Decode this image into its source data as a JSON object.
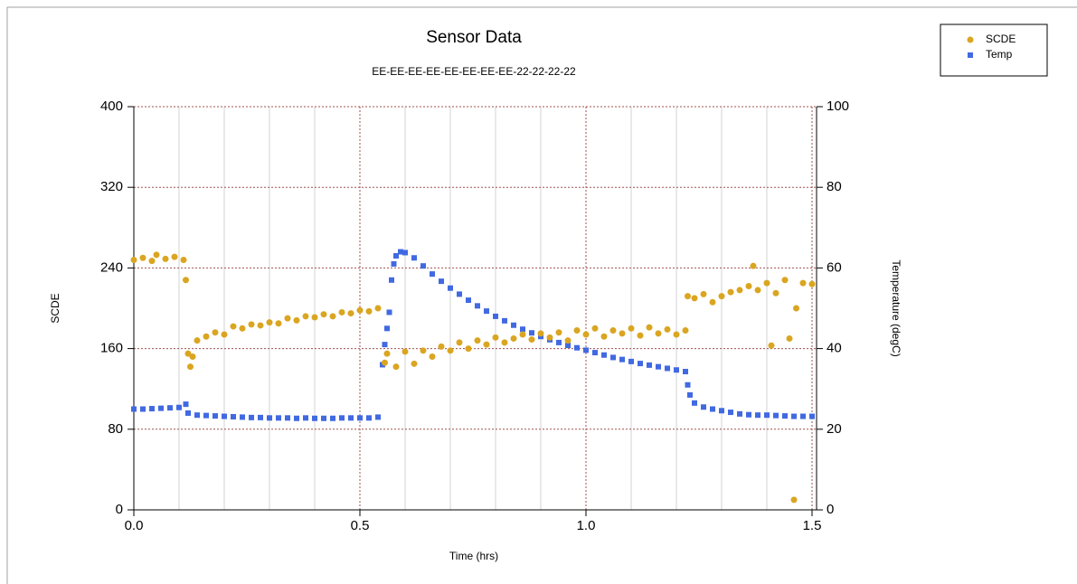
{
  "chart_data": {
    "type": "scatter",
    "title": "Sensor Data",
    "subtitle": "EE-EE-EE-EE-EE-EE-EE-EE-22-22-22-22",
    "x_label": "Time (hrs)",
    "y_label": "SCDE",
    "y2_label": "Temperature (degC)",
    "xlim": [
      0,
      1.51
    ],
    "xticks": [
      {
        "value": 0,
        "label": "0.0"
      },
      0.5,
      {
        "value": 1,
        "label": "1.0"
      },
      1.5
    ],
    "xminorticks": [
      0.1,
      0.2,
      0.3,
      0.4,
      0.6,
      0.7,
      0.8,
      0.9,
      1.1,
      1.2,
      1.3,
      1.4
    ],
    "ylim": [
      0,
      400
    ],
    "yticks": [
      0,
      80,
      160,
      240,
      320,
      400
    ],
    "y2lim": [
      0,
      100
    ],
    "y2ticks": [
      0,
      20,
      40,
      60,
      80,
      100
    ],
    "grid": true,
    "legend": "top-right",
    "series": [
      {
        "name": "SCDE",
        "color": "#daa520",
        "marker": "circle",
        "axis": "y",
        "x": [
          0,
          0.02,
          0.04,
          0.05,
          0.07,
          0.09,
          0.11,
          0.115,
          0.12,
          0.125,
          0.13,
          0.14,
          0.16,
          0.18,
          0.2,
          0.22,
          0.24,
          0.26,
          0.28,
          0.3,
          0.32,
          0.34,
          0.36,
          0.38,
          0.4,
          0.42,
          0.44,
          0.46,
          0.48,
          0.5,
          0.52,
          0.54,
          0.555,
          0.56,
          0.58,
          0.6,
          0.62,
          0.64,
          0.66,
          0.68,
          0.7,
          0.72,
          0.74,
          0.76,
          0.78,
          0.8,
          0.82,
          0.84,
          0.86,
          0.88,
          0.9,
          0.92,
          0.94,
          0.96,
          0.98,
          1.0,
          1.02,
          1.04,
          1.06,
          1.08,
          1.1,
          1.12,
          1.14,
          1.16,
          1.18,
          1.2,
          1.22,
          1.225,
          1.24,
          1.26,
          1.28,
          1.3,
          1.32,
          1.34,
          1.36,
          1.37,
          1.38,
          1.4,
          1.41,
          1.42,
          1.44,
          1.45,
          1.46,
          1.465,
          1.48,
          1.5
        ],
        "values": [
          248,
          250,
          247,
          253,
          249,
          251,
          248,
          228,
          155,
          142,
          152,
          168,
          172,
          176,
          174,
          182,
          180,
          184,
          183,
          186,
          185,
          190,
          188,
          192,
          191,
          194,
          192,
          196,
          195,
          198,
          197,
          200,
          146,
          155,
          142,
          157,
          145,
          158,
          152,
          162,
          158,
          166,
          160,
          168,
          164,
          171,
          166,
          170,
          174,
          169,
          175,
          171,
          176,
          168,
          178,
          174,
          180,
          172,
          178,
          175,
          180,
          173,
          181,
          175,
          179,
          174,
          178,
          212,
          210,
          214,
          206,
          212,
          216,
          218,
          222,
          242,
          218,
          225,
          163,
          215,
          228,
          170,
          10,
          200,
          225,
          224
        ]
      },
      {
        "name": "Temp",
        "color": "#4169e1",
        "marker": "square",
        "axis": "y2",
        "x": [
          0,
          0.02,
          0.04,
          0.06,
          0.08,
          0.1,
          0.115,
          0.12,
          0.14,
          0.16,
          0.18,
          0.2,
          0.22,
          0.24,
          0.26,
          0.28,
          0.3,
          0.32,
          0.34,
          0.36,
          0.38,
          0.4,
          0.42,
          0.44,
          0.46,
          0.48,
          0.5,
          0.52,
          0.54,
          0.55,
          0.555,
          0.56,
          0.565,
          0.57,
          0.575,
          0.58,
          0.59,
          0.6,
          0.62,
          0.64,
          0.66,
          0.68,
          0.7,
          0.72,
          0.74,
          0.76,
          0.78,
          0.8,
          0.82,
          0.84,
          0.86,
          0.88,
          0.9,
          0.92,
          0.94,
          0.96,
          0.98,
          1.0,
          1.02,
          1.04,
          1.06,
          1.08,
          1.1,
          1.12,
          1.14,
          1.16,
          1.18,
          1.2,
          1.22,
          1.225,
          1.23,
          1.24,
          1.26,
          1.28,
          1.3,
          1.32,
          1.34,
          1.36,
          1.38,
          1.4,
          1.42,
          1.44,
          1.46,
          1.48,
          1.5
        ],
        "values": [
          25,
          25,
          25.1,
          25.2,
          25.3,
          25.4,
          26.2,
          24,
          23.5,
          23.4,
          23.3,
          23.2,
          23.1,
          23,
          22.9,
          22.9,
          22.8,
          22.8,
          22.8,
          22.7,
          22.8,
          22.7,
          22.7,
          22.7,
          22.8,
          22.8,
          22.8,
          22.8,
          23,
          36,
          41,
          45,
          49,
          57,
          61,
          63,
          64,
          63.8,
          62.5,
          60.5,
          58.5,
          56.7,
          55,
          53.5,
          52,
          50.6,
          49.3,
          48,
          46.9,
          45.8,
          44.8,
          43.9,
          43,
          42.2,
          41.5,
          40.8,
          40.2,
          39.6,
          39,
          38.4,
          37.8,
          37.3,
          36.8,
          36.3,
          35.9,
          35.5,
          35.1,
          34.7,
          34.3,
          31,
          28.5,
          26.5,
          25.5,
          25,
          24.6,
          24.2,
          23.8,
          23.6,
          23.5,
          23.5,
          23.4,
          23.3,
          23.2,
          23.2,
          23.2
        ]
      }
    ]
  }
}
